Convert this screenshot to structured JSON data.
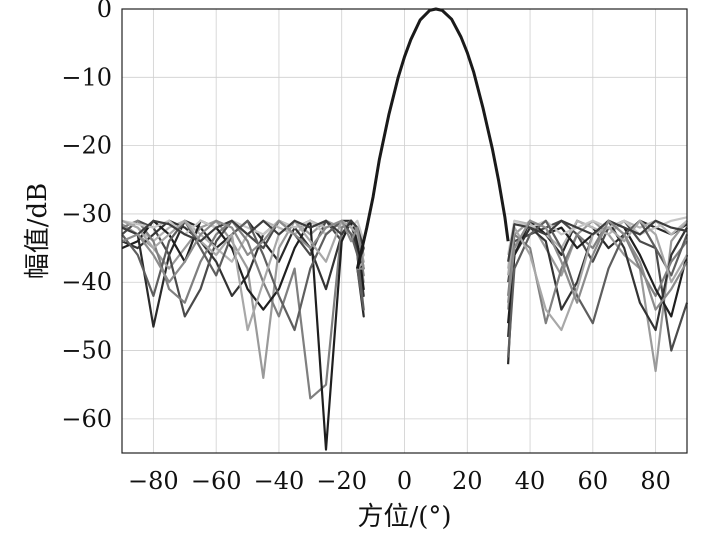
{
  "chart_data": {
    "type": "line",
    "xlabel": "方位/(°)",
    "ylabel": "幅值/dB",
    "xlim": [
      -90,
      90
    ],
    "ylim": [
      -65,
      0
    ],
    "xticks": [
      -80,
      -60,
      -40,
      -20,
      0,
      20,
      40,
      60,
      80
    ],
    "xtick_labels": [
      "−80",
      "−60",
      "−40",
      "−20",
      "0",
      "20",
      "40",
      "60",
      "80"
    ],
    "yticks": [
      0,
      -10,
      -20,
      -30,
      -40,
      -50,
      -60
    ],
    "ytick_labels": [
      "0",
      "−10",
      "−20",
      "−30",
      "−40",
      "−50",
      "−60"
    ],
    "grid": true,
    "mainlobe": {
      "x": [
        -15,
        -12,
        -10,
        -8,
        -5,
        -2,
        0,
        2,
        5,
        8,
        10,
        12,
        15,
        18,
        20,
        22,
        25,
        28,
        30,
        32,
        33
      ],
      "y": [
        -38,
        -32,
        -27.5,
        -22,
        -15.5,
        -10,
        -7,
        -4.5,
        -1.6,
        -0.2,
        0,
        -0.2,
        -1.5,
        -4.1,
        -6.4,
        -9.2,
        -14.5,
        -20.5,
        -25.2,
        -30.5,
        -34
      ]
    },
    "series": [
      {
        "color": "#2a2a2a",
        "left_x": [
          -90,
          -85,
          -80,
          -75,
          -70,
          -65,
          -60,
          -55,
          -50,
          -45,
          -40,
          -35,
          -30,
          -25,
          -20,
          -17,
          -15,
          -13
        ],
        "left_y": [
          -32,
          -33,
          -46.5,
          -36,
          -31,
          -32,
          -35,
          -33,
          -31,
          -34,
          -37,
          -32,
          -31,
          -33,
          -31,
          -31,
          -36,
          -45
        ],
        "right_x": [
          33,
          35,
          40,
          45,
          50,
          55,
          60,
          65,
          70,
          75,
          80,
          85,
          90
        ],
        "right_y": [
          -52,
          -35,
          -31,
          -33,
          -36,
          -31,
          -32,
          -35,
          -33,
          -31,
          -32,
          -33,
          -31.5
        ]
      },
      {
        "color": "#9a9a9a",
        "left_x": [
          -90,
          -85,
          -80,
          -75,
          -70,
          -65,
          -60,
          -55,
          -50,
          -45,
          -40,
          -35,
          -30,
          -25,
          -20,
          -17,
          -15,
          -13
        ],
        "left_y": [
          -31.5,
          -33,
          -35,
          -38,
          -35,
          -32,
          -31,
          -34,
          -38,
          -54,
          -35,
          -31,
          -33,
          -31,
          -32,
          -31,
          -34,
          -40
        ],
        "right_x": [
          33,
          35,
          40,
          45,
          50,
          55,
          60,
          65,
          70,
          75,
          80,
          85,
          90
        ],
        "right_y": [
          -44,
          -33,
          -31,
          -35,
          -39,
          -33,
          -31,
          -33,
          -36,
          -38,
          -53,
          -34,
          -31
        ]
      },
      {
        "color": "#4a4a4a",
        "left_x": [
          -90,
          -85,
          -80,
          -75,
          -70,
          -65,
          -60,
          -55,
          -50,
          -45,
          -40,
          -35,
          -30,
          -25,
          -20,
          -17,
          -15,
          -13
        ],
        "left_y": [
          -33,
          -31,
          -32,
          -36,
          -45,
          -41,
          -34,
          -31,
          -33,
          -35,
          -31,
          -33,
          -36,
          -31,
          -34,
          -31,
          -33,
          -38
        ],
        "right_x": [
          33,
          35,
          40,
          45,
          50,
          55,
          60,
          65,
          70,
          75,
          80,
          85,
          90
        ],
        "right_y": [
          -40,
          -34,
          -33,
          -32,
          -31,
          -33,
          -37,
          -32,
          -31,
          -34,
          -35,
          -50,
          -43
        ]
      },
      {
        "color": "#b5b5b5",
        "left_x": [
          -90,
          -85,
          -80,
          -75,
          -70,
          -65,
          -60,
          -55,
          -50,
          -45,
          -40,
          -35,
          -30,
          -25,
          -20,
          -17,
          -15,
          -13
        ],
        "left_y": [
          -31,
          -32,
          -34,
          -32,
          -31,
          -33,
          -35,
          -37,
          -33,
          -31,
          -32,
          -33,
          -31,
          -32,
          -31,
          -33,
          -32,
          -36
        ],
        "right_x": [
          33,
          35,
          40,
          45,
          50,
          55,
          60,
          65,
          70,
          75,
          80,
          85,
          90
        ],
        "right_y": [
          -38,
          -31,
          -31.5,
          -33,
          -35,
          -31,
          -32,
          -33,
          -31,
          -32,
          -31,
          -33,
          -31
        ]
      },
      {
        "color": "#333333",
        "left_x": [
          -90,
          -85,
          -80,
          -75,
          -70,
          -65,
          -60,
          -55,
          -50,
          -45,
          -40,
          -35,
          -30,
          -25,
          -20,
          -17,
          -15,
          -13
        ],
        "left_y": [
          -34,
          -35,
          -33,
          -31,
          -32,
          -34,
          -37,
          -42,
          -39,
          -33,
          -31,
          -32,
          -35,
          -41,
          -33,
          -31,
          -35,
          -42
        ],
        "right_x": [
          33,
          35,
          40,
          45,
          50,
          55,
          60,
          65,
          70,
          75,
          80,
          85,
          90
        ],
        "right_y": [
          -48,
          -36,
          -32,
          -34,
          -44,
          -40,
          -33,
          -31,
          -35,
          -43,
          -47,
          -36,
          -32
        ]
      },
      {
        "color": "#7f7f7f",
        "left_x": [
          -90,
          -85,
          -80,
          -75,
          -70,
          -65,
          -60,
          -55,
          -50,
          -45,
          -40,
          -35,
          -30,
          -25,
          -20,
          -17,
          -15,
          -13
        ],
        "left_y": [
          -32,
          -31,
          -34,
          -41,
          -43,
          -37,
          -33,
          -31,
          -34,
          -40,
          -45,
          -38,
          -57,
          -55,
          -32,
          -31,
          -33,
          -39
        ],
        "right_x": [
          33,
          35,
          40,
          45,
          50,
          55,
          60,
          65,
          70,
          75,
          80,
          85,
          90
        ],
        "right_y": [
          -42,
          -33,
          -35,
          -46,
          -38,
          -33,
          -35,
          -31,
          -33,
          -38,
          -42,
          -37,
          -34
        ]
      },
      {
        "color": "#1f1f1f",
        "left_x": [
          -90,
          -85,
          -80,
          -75,
          -70,
          -65,
          -60,
          -55,
          -50,
          -45,
          -40,
          -35,
          -30,
          -25,
          -20,
          -17,
          -15,
          -13
        ],
        "left_y": [
          -35,
          -34,
          -31,
          -33,
          -37,
          -31,
          -32,
          -35,
          -41,
          -44,
          -41,
          -35,
          -31,
          -64.5,
          -34,
          -31,
          -34,
          -41
        ],
        "right_x": [
          33,
          35,
          40,
          45,
          50,
          55,
          60,
          65,
          70,
          75,
          80,
          85,
          90
        ],
        "right_y": [
          -46,
          -36,
          -31,
          -33,
          -32,
          -35,
          -33,
          -31,
          -32,
          -36,
          -41,
          -45,
          -36
        ]
      },
      {
        "color": "#c6c6c6",
        "left_x": [
          -90,
          -85,
          -80,
          -75,
          -70,
          -65,
          -60,
          -55,
          -50,
          -45,
          -40,
          -35,
          -30,
          -25,
          -20,
          -17,
          -15,
          -13
        ],
        "left_y": [
          -31,
          -31.5,
          -32,
          -31,
          -33,
          -31,
          -32,
          -31,
          -32,
          -33,
          -31,
          -32,
          -31,
          -33,
          -31,
          -32,
          -31,
          -34
        ],
        "right_x": [
          33,
          35,
          40,
          45,
          50,
          55,
          60,
          65,
          70,
          75,
          80,
          85,
          90
        ],
        "right_y": [
          -36,
          -31,
          -32,
          -31,
          -33,
          -32,
          -31,
          -32,
          -31,
          -33,
          -32,
          -31,
          -30.5
        ]
      },
      {
        "color": "#5e5e5e",
        "left_x": [
          -90,
          -85,
          -80,
          -75,
          -70,
          -65,
          -60,
          -55,
          -50,
          -45,
          -40,
          -35,
          -30,
          -25,
          -20,
          -17,
          -15,
          -13
        ],
        "left_y": [
          -33,
          -36,
          -42,
          -34,
          -31,
          -35,
          -39,
          -33,
          -31,
          -36,
          -42,
          -47,
          -38,
          -33,
          -31,
          -33,
          -36,
          -44
        ],
        "right_x": [
          33,
          35,
          40,
          45,
          50,
          55,
          60,
          65,
          70,
          75,
          80,
          85,
          90
        ],
        "right_y": [
          -51,
          -38,
          -33,
          -31,
          -35,
          -42,
          -46,
          -38,
          -33,
          -31,
          -35,
          -39,
          -33
        ]
      },
      {
        "color": "#a8a8a8",
        "left_x": [
          -90,
          -85,
          -80,
          -75,
          -70,
          -65,
          -60,
          -55,
          -50,
          -45,
          -40,
          -35,
          -30,
          -25,
          -20,
          -17,
          -15,
          -13
        ],
        "left_y": [
          -31,
          -32,
          -35,
          -33,
          -31,
          -34,
          -36,
          -33,
          -47,
          -40,
          -33,
          -31,
          -34,
          -37,
          -31,
          -32,
          -33,
          -37
        ],
        "right_x": [
          33,
          35,
          40,
          45,
          50,
          55,
          60,
          65,
          70,
          75,
          80,
          85,
          90
        ],
        "right_y": [
          -39,
          -32,
          -36,
          -44,
          -47,
          -41,
          -33,
          -32,
          -34,
          -31,
          -33,
          -40,
          -36
        ]
      },
      {
        "color": "#3c3c3c",
        "left_x": [
          -90,
          -85,
          -80,
          -75,
          -70,
          -65,
          -60,
          -55,
          -50,
          -45,
          -40,
          -35,
          -30,
          -25,
          -20,
          -17,
          -15,
          -13
        ],
        "left_y": [
          -32,
          -33,
          -31,
          -31.5,
          -33,
          -34,
          -32,
          -31,
          -33,
          -31,
          -33,
          -31,
          -32,
          -31,
          -33,
          -31,
          -32,
          -35
        ],
        "right_x": [
          33,
          35,
          40,
          45,
          50,
          55,
          60,
          65,
          70,
          75,
          80,
          85,
          90
        ],
        "right_y": [
          -37,
          -31.5,
          -32,
          -33,
          -31,
          -32,
          -33,
          -31,
          -32,
          -33,
          -31,
          -32,
          -32.5
        ]
      },
      {
        "color": "#8c8c8c",
        "left_x": [
          -90,
          -85,
          -80,
          -75,
          -70,
          -65,
          -60,
          -55,
          -50,
          -45,
          -40,
          -35,
          -30,
          -25,
          -20,
          -17,
          -15,
          -13
        ],
        "left_y": [
          -34,
          -33,
          -36,
          -40,
          -37,
          -33,
          -31,
          -32,
          -36,
          -34,
          -31,
          -33,
          -35,
          -32,
          -31,
          -34,
          -32,
          -38
        ],
        "right_x": [
          33,
          35,
          40,
          45,
          50,
          55,
          60,
          65,
          70,
          75,
          80,
          85,
          90
        ],
        "right_y": [
          -43,
          -35,
          -31,
          -32,
          -37,
          -43,
          -36,
          -31,
          -33,
          -37,
          -44,
          -41,
          -37
        ]
      }
    ]
  }
}
